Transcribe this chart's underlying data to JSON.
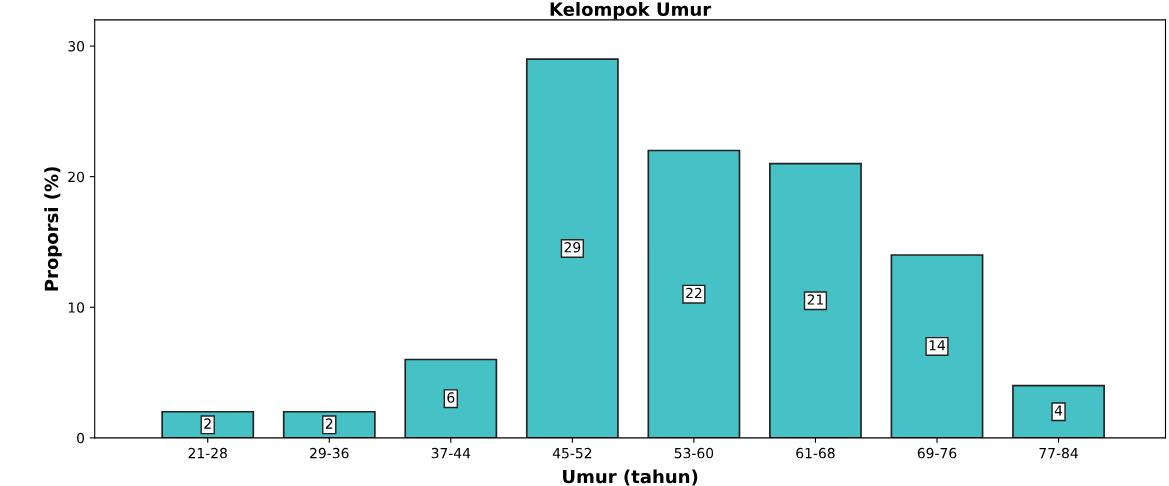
{
  "chart_data": {
    "type": "bar",
    "title": "Kelompok Umur",
    "xlabel": "Umur (tahun)",
    "ylabel": "Proporsi (%)",
    "categories": [
      "21-28",
      "29-36",
      "37-44",
      "45-52",
      "53-60",
      "61-68",
      "69-76",
      "77-84"
    ],
    "values": [
      2,
      2,
      6,
      29,
      22,
      21,
      14,
      4
    ],
    "color": "#46c1c5",
    "ylim": [
      0,
      32
    ],
    "yticks": [
      0,
      10,
      20,
      30
    ],
    "data_labels": true,
    "grid": false,
    "legend": false
  }
}
